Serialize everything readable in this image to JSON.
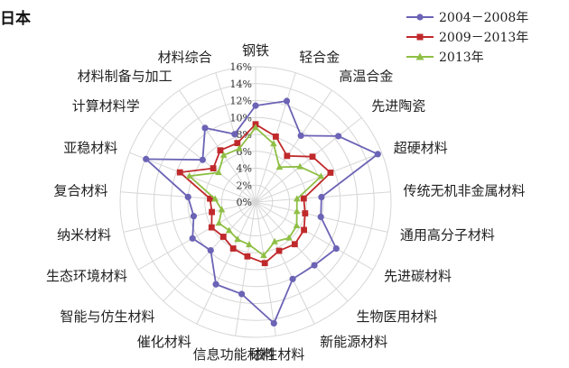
{
  "chart_data": {
    "type": "radar",
    "title": "日本",
    "axis_labels": [
      "钢铁",
      "轻合金",
      "高温合金",
      "先进陶瓷",
      "超硬材料",
      "传统无机非金属材料",
      "通用高分子材料",
      "先进碳材料",
      "生物医用材料",
      "新能源材料",
      "磁性材料",
      "信息功能材料",
      "催化材料",
      "智能与仿生材料",
      "生态环境材料",
      "纳米材料",
      "复合材料",
      "亚稳材料",
      "计算材料学",
      "材料制备与加工",
      "材料综合"
    ],
    "radial_ticks": [
      "0%",
      "2%",
      "4%",
      "6%",
      "8%",
      "10%",
      "12%",
      "14%",
      "16%"
    ],
    "rmax": 16,
    "series": [
      {
        "name": "2004－2008年",
        "color": "#6b63b5",
        "values": [
          11.4,
          12.5,
          9.5,
          12.5,
          15.5,
          7.8,
          7.9,
          11.0,
          10.2,
          10.1,
          14.5,
          11.0,
          10.8,
          7.8,
          8.6,
          7.5,
          8.0,
          13.9,
          8.0,
          10.6,
          8.4
        ]
      },
      {
        "name": "2009－2013年",
        "color": "#c0292b",
        "values": [
          9.2,
          8.1,
          6.6,
          8.6,
          9.5,
          5.7,
          6.0,
          6.6,
          6.8,
          6.4,
          7.3,
          6.5,
          6.1,
          5.6,
          6.0,
          5.3,
          5.4,
          9.6,
          6.4,
          7.4,
          7.3
        ]
      },
      {
        "name": "2013年",
        "color": "#8fbf45",
        "values": [
          8.8,
          7.2,
          5.0,
          6.7,
          8.3,
          4.9,
          5.0,
          5.6,
          5.8,
          5.2,
          6.4,
          5.1,
          4.9,
          4.6,
          5.0,
          4.1,
          4.8,
          8.4,
          5.6,
          6.7,
          6.6
        ]
      }
    ]
  }
}
